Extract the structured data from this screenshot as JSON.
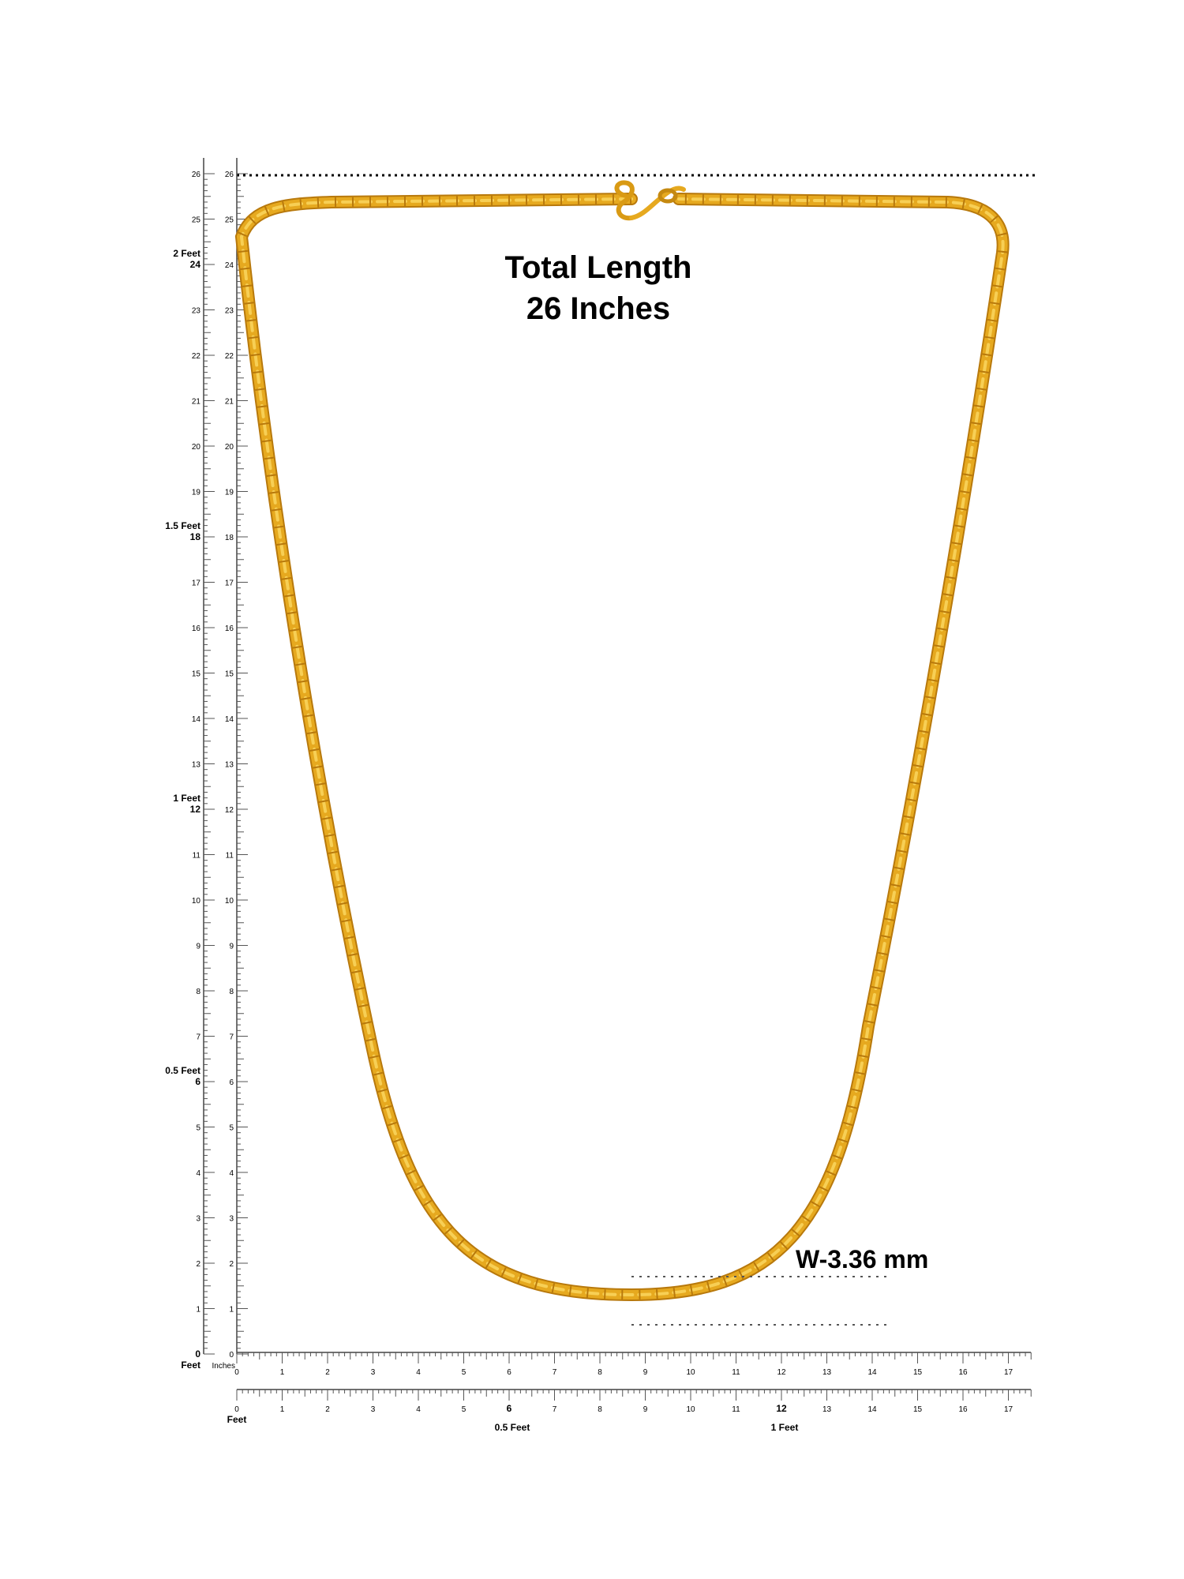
{
  "headline": {
    "line1": "Total Length",
    "line2": "26 Inches"
  },
  "width_label": "W-3.36 mm",
  "vertical_ruler": {
    "inch_labels": [
      "0",
      "1",
      "2",
      "3",
      "4",
      "5",
      "6",
      "7",
      "8",
      "9",
      "10",
      "11",
      "12",
      "13",
      "14",
      "15",
      "16",
      "17",
      "18",
      "19",
      "20",
      "21",
      "22",
      "23",
      "24",
      "25",
      "26"
    ],
    "feet_marks": [
      {
        "inch": 0,
        "label": "0",
        "unit": "Feet"
      },
      {
        "inch": 6,
        "label": "6",
        "unit": "0.5 Feet"
      },
      {
        "inch": 12,
        "label": "12",
        "unit": "1 Feet"
      },
      {
        "inch": 18,
        "label": "18",
        "unit": "1.5 Feet"
      },
      {
        "inch": 24,
        "label": "24",
        "unit": "2 Feet"
      }
    ],
    "inches_caption": "Inches"
  },
  "horizontal_ruler_top": {
    "labels": [
      "0",
      "1",
      "2",
      "3",
      "4",
      "5",
      "6",
      "7",
      "8",
      "9",
      "10",
      "11",
      "12",
      "13",
      "14",
      "15",
      "16",
      "17"
    ]
  },
  "horizontal_ruler_bottom": {
    "labels": [
      "0",
      "1",
      "2",
      "3",
      "4",
      "5",
      "6",
      "7",
      "8",
      "9",
      "10",
      "11",
      "12",
      "13",
      "14",
      "15",
      "16",
      "17"
    ],
    "feet_caption": "Feet",
    "half_feet": {
      "inch": 6,
      "label": "6",
      "caption": "0.5 Feet"
    },
    "one_feet": {
      "inch": 12,
      "label": "12",
      "caption": "1 Feet"
    }
  },
  "colors": {
    "chain_gold": "#E6A91F",
    "chain_dark": "#B8790C",
    "chain_light": "#F7CF55",
    "ruler": "#444444"
  }
}
